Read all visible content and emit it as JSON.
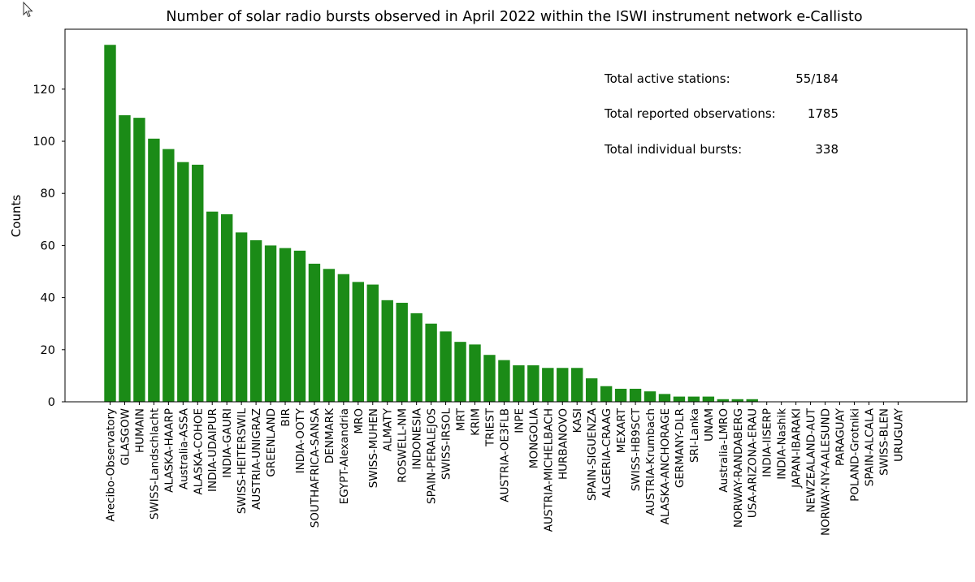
{
  "chart_data": {
    "type": "bar",
    "title": "Number of solar radio bursts observed in April 2022 within the ISWI instrument network e-Callisto",
    "xlabel": "",
    "ylabel": "Counts",
    "ylim": [
      0,
      143
    ],
    "yticks": [
      0,
      20,
      40,
      60,
      80,
      100,
      120
    ],
    "grid": false,
    "bar_color": "#1b8b17",
    "categories": [
      "Arecibo-Observatory",
      "GLASGOW",
      "HUMAIN",
      "SWISS-Landschlacht",
      "ALASKA-HAARP",
      "Australia-ASSA",
      "ALASKA-COHOE",
      "INDIA-UDAIPUR",
      "INDIA-GAURI",
      "SWISS-HEITERSWIL",
      "AUSTRIA-UNIGRAZ",
      "GREENLAND",
      "BIR",
      "INDIA-OOTY",
      "SOUTHAFRICA-SANSA",
      "DENMARK",
      "EGYPT-Alexandria",
      "MRO",
      "SWISS-MUHEN",
      "ALMATY",
      "ROSWELL-NM",
      "INDONESIA",
      "SPAIN-PERALEJOS",
      "SWISS-IRSOL",
      "MRT",
      "KRIM",
      "TRIEST",
      "AUSTRIA-OE3FLB",
      "INPE",
      "MONGOLIA",
      "AUSTRIA-MICHELBACH",
      "HURBANOVO",
      "KASI",
      "SPAIN-SIGUENZA",
      "ALGERIA-CRAAG",
      "MEXART",
      "SWISS-HB9SCT",
      "AUSTRIA-Krumbach",
      "ALASKA-ANCHORAGE",
      "GERMANY-DLR",
      "SRI-Lanka",
      "UNAM",
      "Australia-LMRO",
      "NORWAY-RANDABERG",
      "USA-ARIZONA-ERAU",
      "INDIA-IISERP",
      "INDIA-Nashik",
      "JAPAN-IBARAKI",
      "NEWZEALAND-AUT",
      "NORWAY-NY-AALESUND",
      "PARAGUAY",
      "POLAND-Grotniki",
      "SPAIN-ALCALA",
      "SWISS-BLEN",
      "URUGUAY"
    ],
    "values": [
      137,
      110,
      109,
      101,
      97,
      92,
      91,
      73,
      72,
      65,
      62,
      60,
      59,
      58,
      53,
      51,
      49,
      46,
      45,
      39,
      38,
      34,
      30,
      27,
      23,
      22,
      18,
      16,
      14,
      14,
      13,
      13,
      13,
      9,
      6,
      5,
      5,
      4,
      3,
      2,
      2,
      2,
      1,
      1,
      1,
      0,
      0,
      0,
      0,
      0,
      0,
      0,
      0,
      0,
      0
    ],
    "annotations": [
      {
        "label": "Total active stations:",
        "value": "55/184"
      },
      {
        "label": "Total reported observations:",
        "value": "1785"
      },
      {
        "label": "Total individual bursts:",
        "value": "338"
      }
    ]
  }
}
